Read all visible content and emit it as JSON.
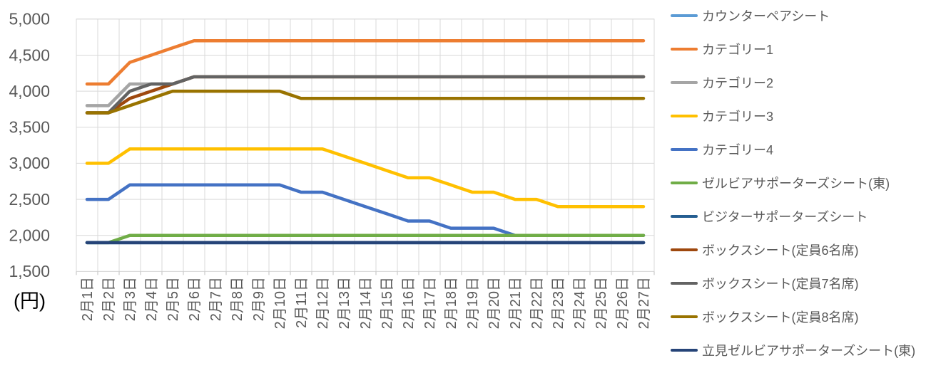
{
  "unit_label": "(円)",
  "colors": {
    "background": "#FFFFFF",
    "gridline": "#D9D9D9",
    "plot_border": "#D9D9D9",
    "tick_mark": "#BFBFBF",
    "axis_text": "#595959",
    "legend_text": "#595959",
    "unit_text": "#000000"
  },
  "chart_data": {
    "type": "line",
    "title": "",
    "xlabel": "",
    "ylabel": "(円)",
    "grid": true,
    "legend_position": "right",
    "y_axis": {
      "min": 1500,
      "max": 5000,
      "step": 500,
      "tick_labels": [
        "5,000",
        "4,500",
        "4,000",
        "3,500",
        "3,000",
        "2,500",
        "2,000",
        "1,500"
      ]
    },
    "categories": [
      "2月1日",
      "2月2日",
      "2月3日",
      "2月4日",
      "2月5日",
      "2月6日",
      "2月7日",
      "2月8日",
      "2月9日",
      "2月10日",
      "2月11日",
      "2月12日",
      "2月13日",
      "2月14日",
      "2月15日",
      "2月16日",
      "2月17日",
      "2月18日",
      "2月19日",
      "2月20日",
      "2月21日",
      "2月22日",
      "2月23日",
      "2月24日",
      "2月25日",
      "2月26日",
      "2月27日"
    ],
    "series": [
      {
        "name": "カウンターペアシート",
        "color": "#5B9BD5",
        "values": [
          1900,
          1900,
          1900,
          1900,
          1900,
          1900,
          1900,
          1900,
          1900,
          1900,
          1900,
          1900,
          1900,
          1900,
          1900,
          1900,
          1900,
          1900,
          1900,
          1900,
          1900,
          1900,
          1900,
          1900,
          1900,
          1900,
          1900
        ]
      },
      {
        "name": "カテゴリー1",
        "color": "#ED7D31",
        "values": [
          4100,
          4100,
          4400,
          4500,
          4600,
          4700,
          4700,
          4700,
          4700,
          4700,
          4700,
          4700,
          4700,
          4700,
          4700,
          4700,
          4700,
          4700,
          4700,
          4700,
          4700,
          4700,
          4700,
          4700,
          4700,
          4700,
          4700
        ]
      },
      {
        "name": "カテゴリー2",
        "color": "#A5A5A5",
        "values": [
          3800,
          3800,
          4100,
          4100,
          4100,
          4200,
          4200,
          4200,
          4200,
          4200,
          4200,
          4200,
          4200,
          4200,
          4200,
          4200,
          4200,
          4200,
          4200,
          4200,
          4200,
          4200,
          4200,
          4200,
          4200,
          4200,
          4200
        ]
      },
      {
        "name": "カテゴリー3",
        "color": "#FFC000",
        "values": [
          3000,
          3000,
          3200,
          3200,
          3200,
          3200,
          3200,
          3200,
          3200,
          3200,
          3200,
          3200,
          3100,
          3000,
          2900,
          2800,
          2800,
          2700,
          2600,
          2600,
          2500,
          2500,
          2400,
          2400,
          2400,
          2400,
          2400
        ]
      },
      {
        "name": "カテゴリー4",
        "color": "#4472C4",
        "values": [
          2500,
          2500,
          2700,
          2700,
          2700,
          2700,
          2700,
          2700,
          2700,
          2700,
          2600,
          2600,
          2500,
          2400,
          2300,
          2200,
          2200,
          2100,
          2100,
          2100,
          2000,
          2000,
          2000,
          2000,
          2000,
          2000,
          2000
        ]
      },
      {
        "name": "ゼルビアサポーターズシート(東)",
        "color": "#70AD47",
        "values": [
          1900,
          1900,
          2000,
          2000,
          2000,
          2000,
          2000,
          2000,
          2000,
          2000,
          2000,
          2000,
          2000,
          2000,
          2000,
          2000,
          2000,
          2000,
          2000,
          2000,
          2000,
          2000,
          2000,
          2000,
          2000,
          2000,
          2000
        ]
      },
      {
        "name": "ビジターサポーターズシート",
        "color": "#255E91",
        "values": [
          1900,
          1900,
          1900,
          1900,
          1900,
          1900,
          1900,
          1900,
          1900,
          1900,
          1900,
          1900,
          1900,
          1900,
          1900,
          1900,
          1900,
          1900,
          1900,
          1900,
          1900,
          1900,
          1900,
          1900,
          1900,
          1900,
          1900
        ]
      },
      {
        "name": "ボックスシート(定員6名席)",
        "color": "#9E480E",
        "values": [
          3700,
          3700,
          3900,
          4000,
          4100,
          4200,
          4200,
          4200,
          4200,
          4200,
          4200,
          4200,
          4200,
          4200,
          4200,
          4200,
          4200,
          4200,
          4200,
          4200,
          4200,
          4200,
          4200,
          4200,
          4200,
          4200,
          4200
        ]
      },
      {
        "name": "ボックスシート(定員7名席)",
        "color": "#636363",
        "values": [
          3700,
          3700,
          4000,
          4100,
          4100,
          4200,
          4200,
          4200,
          4200,
          4200,
          4200,
          4200,
          4200,
          4200,
          4200,
          4200,
          4200,
          4200,
          4200,
          4200,
          4200,
          4200,
          4200,
          4200,
          4200,
          4200,
          4200
        ]
      },
      {
        "name": "ボックスシート(定員8名席)",
        "color": "#997300",
        "values": [
          3700,
          3700,
          3800,
          3900,
          4000,
          4000,
          4000,
          4000,
          4000,
          4000,
          3900,
          3900,
          3900,
          3900,
          3900,
          3900,
          3900,
          3900,
          3900,
          3900,
          3900,
          3900,
          3900,
          3900,
          3900,
          3900,
          3900
        ]
      },
      {
        "name": "立見ゼルビアサポーターズシート(東)",
        "color": "#264478",
        "values": [
          1900,
          1900,
          1900,
          1900,
          1900,
          1900,
          1900,
          1900,
          1900,
          1900,
          1900,
          1900,
          1900,
          1900,
          1900,
          1900,
          1900,
          1900,
          1900,
          1900,
          1900,
          1900,
          1900,
          1900,
          1900,
          1900,
          1900
        ]
      }
    ]
  }
}
